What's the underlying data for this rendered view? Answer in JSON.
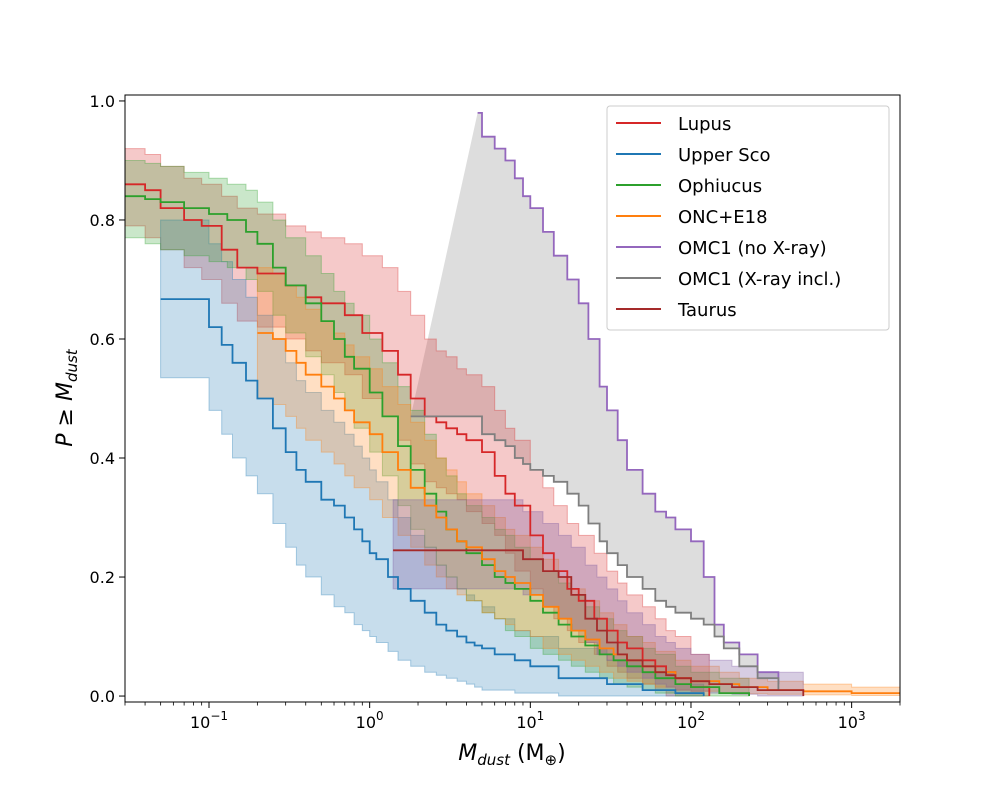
{
  "chart_data": {
    "type": "line",
    "title": "",
    "xlabel": {
      "main": "M",
      "sub": "dust",
      "unit_open": " (M",
      "unit_sub": "⊕",
      "unit_close": ")"
    },
    "ylabel": {
      "main": "P ≥ M",
      "sub": "dust"
    },
    "xscale": "log",
    "xlim": [
      0.03,
      2000
    ],
    "ylim": [
      -0.01,
      1.01
    ],
    "x_ticks": [
      {
        "value": 0.1,
        "base": "10",
        "exp": "−1"
      },
      {
        "value": 1,
        "base": "10",
        "exp": "0"
      },
      {
        "value": 10,
        "base": "10",
        "exp": "1"
      },
      {
        "value": 100,
        "base": "10",
        "exp": "2"
      },
      {
        "value": 1000,
        "base": "10",
        "exp": "3"
      }
    ],
    "y_ticks": [
      {
        "value": 0.0,
        "label": "0.0"
      },
      {
        "value": 0.2,
        "label": "0.2"
      },
      {
        "value": 0.4,
        "label": "0.4"
      },
      {
        "value": 0.6,
        "label": "0.6"
      },
      {
        "value": 0.8,
        "label": "0.8"
      },
      {
        "value": 1.0,
        "label": "1.0"
      }
    ],
    "grid": false,
    "legend_position": "top-right",
    "series": [
      {
        "name": "Lupus",
        "color": "#d62728",
        "band_color": "#d62728",
        "band_opacity": 0.25,
        "x": [
          0.03,
          0.04,
          0.05,
          0.07,
          0.09,
          0.12,
          0.15,
          0.2,
          0.3,
          0.4,
          0.5,
          0.7,
          0.9,
          1.2,
          1.5,
          1.8,
          2.2,
          2.6,
          3,
          3.5,
          4,
          5,
          6,
          7,
          8,
          10,
          12,
          14,
          17,
          20,
          25,
          30,
          35,
          40,
          50,
          60,
          70,
          80,
          100,
          130
        ],
        "y": [
          0.86,
          0.85,
          0.82,
          0.8,
          0.79,
          0.75,
          0.72,
          0.71,
          0.69,
          0.67,
          0.66,
          0.64,
          0.61,
          0.58,
          0.54,
          0.5,
          0.47,
          0.46,
          0.45,
          0.44,
          0.43,
          0.41,
          0.37,
          0.34,
          0.32,
          0.27,
          0.24,
          0.21,
          0.18,
          0.16,
          0.13,
          0.11,
          0.09,
          0.08,
          0.06,
          0.05,
          0.04,
          0.03,
          0.015,
          0.0
        ],
        "lower": [
          0.79,
          0.77,
          0.75,
          0.72,
          0.7,
          0.66,
          0.63,
          0.62,
          0.6,
          0.58,
          0.56,
          0.54,
          0.5,
          0.47,
          0.43,
          0.39,
          0.36,
          0.35,
          0.34,
          0.33,
          0.31,
          0.29,
          0.27,
          0.24,
          0.21,
          0.18,
          0.15,
          0.13,
          0.11,
          0.09,
          0.07,
          0.05,
          0.04,
          0.03,
          0.02,
          0.01,
          0.0,
          0.0,
          0.0,
          0.0
        ],
        "upper": [
          0.92,
          0.91,
          0.89,
          0.87,
          0.86,
          0.84,
          0.82,
          0.81,
          0.79,
          0.78,
          0.77,
          0.76,
          0.74,
          0.72,
          0.68,
          0.64,
          0.6,
          0.58,
          0.57,
          0.55,
          0.54,
          0.52,
          0.48,
          0.45,
          0.43,
          0.38,
          0.35,
          0.32,
          0.29,
          0.27,
          0.24,
          0.21,
          0.19,
          0.17,
          0.15,
          0.13,
          0.11,
          0.1,
          0.07,
          0.04
        ]
      },
      {
        "name": "Upper Sco",
        "color": "#1f77b4",
        "band_color": "#1f77b4",
        "band_opacity": 0.25,
        "x": [
          0.05,
          0.06,
          0.07,
          0.08,
          0.09,
          0.1,
          0.12,
          0.14,
          0.17,
          0.2,
          0.25,
          0.3,
          0.35,
          0.4,
          0.5,
          0.6,
          0.7,
          0.8,
          0.9,
          1.0,
          1.1,
          1.3,
          1.5,
          1.8,
          2.2,
          2.6,
          3,
          3.5,
          4,
          4.5,
          5,
          6,
          8,
          10,
          15,
          30,
          50,
          80,
          120
        ],
        "y": [
          0.667,
          0.667,
          0.667,
          0.667,
          0.667,
          0.62,
          0.59,
          0.56,
          0.53,
          0.5,
          0.45,
          0.41,
          0.38,
          0.36,
          0.33,
          0.32,
          0.3,
          0.28,
          0.26,
          0.24,
          0.23,
          0.2,
          0.18,
          0.16,
          0.14,
          0.12,
          0.11,
          0.1,
          0.09,
          0.085,
          0.08,
          0.07,
          0.06,
          0.05,
          0.03,
          0.02,
          0.01,
          0.005,
          0.0
        ],
        "lower": [
          0.535,
          0.535,
          0.535,
          0.535,
          0.535,
          0.48,
          0.44,
          0.4,
          0.37,
          0.34,
          0.29,
          0.25,
          0.22,
          0.2,
          0.17,
          0.15,
          0.14,
          0.12,
          0.11,
          0.1,
          0.09,
          0.075,
          0.06,
          0.05,
          0.04,
          0.035,
          0.03,
          0.025,
          0.02,
          0.015,
          0.01,
          0.01,
          0.005,
          0.005,
          0.0,
          0.0,
          0.0,
          0.0,
          0.0
        ],
        "upper": [
          0.8,
          0.8,
          0.8,
          0.8,
          0.8,
          0.76,
          0.73,
          0.7,
          0.67,
          0.64,
          0.6,
          0.56,
          0.53,
          0.51,
          0.48,
          0.46,
          0.44,
          0.42,
          0.4,
          0.38,
          0.36,
          0.33,
          0.3,
          0.27,
          0.25,
          0.22,
          0.2,
          0.18,
          0.17,
          0.16,
          0.15,
          0.13,
          0.11,
          0.1,
          0.08,
          0.06,
          0.04,
          0.02,
          0.01
        ]
      },
      {
        "name": "Ophiucus",
        "color": "#2ca02c",
        "band_color": "#2ca02c",
        "band_opacity": 0.25,
        "x": [
          0.03,
          0.04,
          0.05,
          0.07,
          0.1,
          0.13,
          0.17,
          0.2,
          0.25,
          0.3,
          0.4,
          0.5,
          0.6,
          0.7,
          0.8,
          1.0,
          1.2,
          1.5,
          1.8,
          2.2,
          2.6,
          3,
          3.5,
          4,
          5,
          6,
          7,
          8,
          10,
          12,
          15,
          18,
          22,
          27,
          33,
          40,
          50,
          60,
          80,
          100,
          150,
          230
        ],
        "y": [
          0.84,
          0.835,
          0.83,
          0.82,
          0.81,
          0.8,
          0.78,
          0.76,
          0.72,
          0.69,
          0.66,
          0.63,
          0.6,
          0.57,
          0.55,
          0.51,
          0.47,
          0.42,
          0.38,
          0.34,
          0.31,
          0.28,
          0.26,
          0.24,
          0.22,
          0.2,
          0.19,
          0.18,
          0.16,
          0.14,
          0.12,
          0.1,
          0.085,
          0.07,
          0.06,
          0.05,
          0.04,
          0.03,
          0.02,
          0.015,
          0.005,
          0.0
        ],
        "lower": [
          0.77,
          0.76,
          0.75,
          0.74,
          0.73,
          0.72,
          0.7,
          0.68,
          0.64,
          0.61,
          0.57,
          0.54,
          0.51,
          0.48,
          0.45,
          0.41,
          0.37,
          0.32,
          0.28,
          0.25,
          0.22,
          0.2,
          0.18,
          0.16,
          0.14,
          0.13,
          0.11,
          0.1,
          0.08,
          0.07,
          0.06,
          0.05,
          0.04,
          0.03,
          0.02,
          0.015,
          0.01,
          0.005,
          0.0,
          0.0,
          0.0,
          0.0
        ],
        "upper": [
          0.9,
          0.895,
          0.89,
          0.88,
          0.87,
          0.86,
          0.85,
          0.83,
          0.8,
          0.77,
          0.74,
          0.71,
          0.68,
          0.66,
          0.64,
          0.6,
          0.56,
          0.52,
          0.48,
          0.44,
          0.4,
          0.37,
          0.34,
          0.32,
          0.3,
          0.28,
          0.27,
          0.25,
          0.23,
          0.21,
          0.19,
          0.17,
          0.15,
          0.13,
          0.11,
          0.1,
          0.08,
          0.07,
          0.05,
          0.04,
          0.03,
          0.02
        ]
      },
      {
        "name": "ONC+E18",
        "color": "#ff7f0e",
        "band_color": "#ff7f0e",
        "band_opacity": 0.25,
        "x": [
          0.2,
          0.25,
          0.3,
          0.35,
          0.4,
          0.5,
          0.6,
          0.7,
          0.8,
          1.0,
          1.2,
          1.5,
          1.8,
          2.2,
          2.6,
          3,
          3.5,
          4,
          5,
          6,
          7,
          8,
          10,
          12,
          15,
          18,
          22,
          27,
          33,
          40,
          50,
          60,
          80,
          100,
          150,
          200,
          300,
          500,
          1000,
          2000
        ],
        "y": [
          0.61,
          0.6,
          0.58,
          0.56,
          0.54,
          0.52,
          0.5,
          0.48,
          0.46,
          0.44,
          0.41,
          0.38,
          0.35,
          0.32,
          0.3,
          0.28,
          0.26,
          0.25,
          0.23,
          0.21,
          0.2,
          0.19,
          0.17,
          0.15,
          0.13,
          0.11,
          0.095,
          0.08,
          0.07,
          0.06,
          0.05,
          0.04,
          0.03,
          0.025,
          0.02,
          0.015,
          0.01,
          0.008,
          0.005,
          0.003
        ],
        "lower": [
          0.5,
          0.49,
          0.47,
          0.45,
          0.43,
          0.41,
          0.39,
          0.37,
          0.35,
          0.33,
          0.3,
          0.27,
          0.25,
          0.22,
          0.2,
          0.18,
          0.17,
          0.16,
          0.14,
          0.13,
          0.12,
          0.11,
          0.1,
          0.08,
          0.07,
          0.06,
          0.05,
          0.04,
          0.03,
          0.025,
          0.02,
          0.015,
          0.01,
          0.008,
          0.005,
          0.004,
          0.003,
          0.002,
          0.001,
          0.0
        ],
        "upper": [
          0.72,
          0.71,
          0.69,
          0.67,
          0.65,
          0.63,
          0.61,
          0.59,
          0.57,
          0.55,
          0.52,
          0.49,
          0.46,
          0.43,
          0.4,
          0.38,
          0.36,
          0.34,
          0.32,
          0.3,
          0.28,
          0.27,
          0.25,
          0.23,
          0.2,
          0.18,
          0.16,
          0.14,
          0.12,
          0.1,
          0.09,
          0.075,
          0.06,
          0.05,
          0.04,
          0.03,
          0.025,
          0.02,
          0.015,
          0.01
        ]
      },
      {
        "name": "OMC1 (no X-ray)",
        "color": "#9467bd",
        "x": [
          4.7,
          5,
          6,
          7,
          8,
          9,
          10,
          12,
          14,
          17,
          20,
          23,
          27,
          30,
          35,
          40,
          50,
          60,
          70,
          80,
          100,
          120,
          140,
          160,
          200,
          260,
          350
        ],
        "y": [
          0.98,
          0.94,
          0.92,
          0.9,
          0.87,
          0.84,
          0.82,
          0.78,
          0.74,
          0.7,
          0.66,
          0.6,
          0.52,
          0.48,
          0.43,
          0.38,
          0.34,
          0.31,
          0.3,
          0.28,
          0.26,
          0.2,
          0.12,
          0.09,
          0.07,
          0.04,
          0.02
        ]
      },
      {
        "name": "OMC1 (X-ray incl.)",
        "color": "#7f7f7f",
        "band_color": "#c7c7c7",
        "band_opacity": 0.6,
        "x": [
          1.8,
          2.5,
          3.5,
          4.7,
          5,
          6,
          7,
          8,
          9,
          10,
          12,
          14,
          17,
          20,
          23,
          27,
          30,
          35,
          40,
          50,
          60,
          70,
          80,
          100,
          120,
          140,
          160,
          200,
          260,
          350
        ],
        "y": [
          0.47,
          0.47,
          0.47,
          0.47,
          0.44,
          0.43,
          0.42,
          0.4,
          0.39,
          0.38,
          0.37,
          0.36,
          0.34,
          0.32,
          0.29,
          0.26,
          0.24,
          0.22,
          0.2,
          0.18,
          0.16,
          0.15,
          0.14,
          0.13,
          0.12,
          0.1,
          0.08,
          0.05,
          0.03,
          0.01
        ]
      },
      {
        "name": "Taurus",
        "color": "#a52a2a",
        "band_color": "#7a5aa0",
        "band_opacity": 0.3,
        "x": [
          1.4,
          2,
          3,
          5,
          7,
          9,
          12,
          15,
          18,
          22,
          26,
          30,
          35,
          40,
          50,
          60,
          70,
          80,
          100,
          130,
          180,
          260,
          500
        ],
        "y": [
          0.245,
          0.245,
          0.245,
          0.245,
          0.245,
          0.23,
          0.21,
          0.2,
          0.17,
          0.13,
          0.11,
          0.09,
          0.07,
          0.06,
          0.05,
          0.04,
          0.035,
          0.03,
          0.025,
          0.02,
          0.015,
          0.01,
          0.0
        ],
        "lower": [
          0.18,
          0.18,
          0.18,
          0.18,
          0.18,
          0.17,
          0.15,
          0.13,
          0.11,
          0.09,
          0.07,
          0.06,
          0.05,
          0.04,
          0.03,
          0.02,
          0.015,
          0.01,
          0.008,
          0.005,
          0.003,
          0.0,
          0.0
        ],
        "upper": [
          0.33,
          0.33,
          0.33,
          0.33,
          0.33,
          0.31,
          0.29,
          0.27,
          0.25,
          0.22,
          0.2,
          0.18,
          0.16,
          0.14,
          0.12,
          0.1,
          0.09,
          0.08,
          0.07,
          0.06,
          0.05,
          0.04,
          0.02
        ]
      }
    ],
    "shaded_regions": [
      {
        "between": "OMC1 (X-ray incl.) / OMC1 (no X-ray)",
        "color": "#c7c7c7"
      }
    ]
  }
}
